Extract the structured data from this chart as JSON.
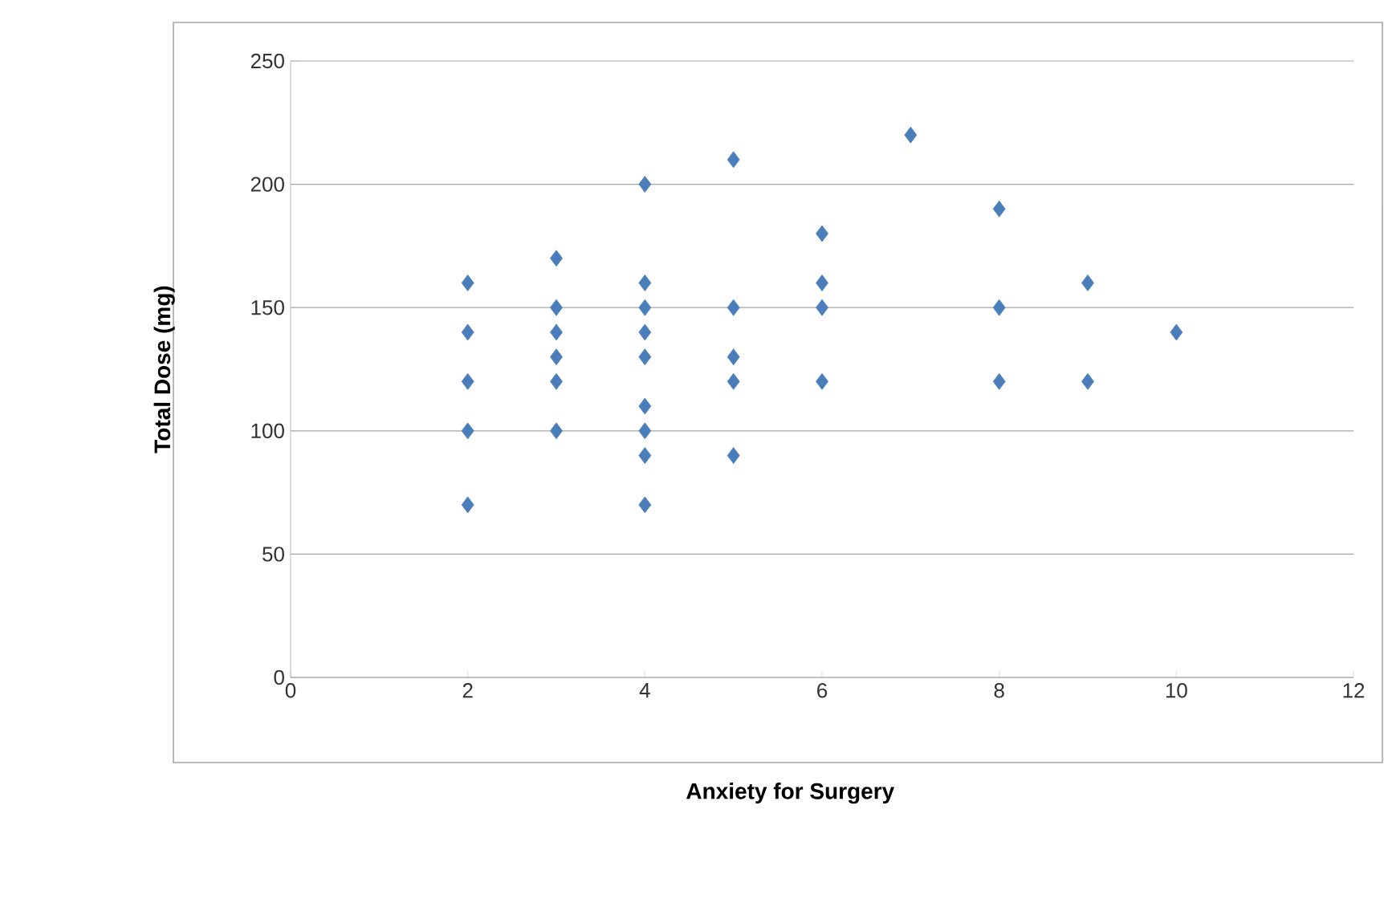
{
  "chart_data": {
    "type": "scatter",
    "xlabel": "Anxiety for Surgery",
    "ylabel": "Total Dose (mg)",
    "series": [
      {
        "color": "#4a7ebb",
        "x": [
          2,
          2,
          2,
          2,
          2,
          3,
          3,
          3,
          3,
          3,
          3,
          4,
          4,
          4,
          4,
          4,
          4,
          4,
          4,
          4,
          5,
          5,
          5,
          5,
          5,
          6,
          6,
          6,
          6,
          7,
          8,
          8,
          8,
          9,
          9,
          10
        ],
        "values": [
          160,
          140,
          120,
          100,
          70,
          170,
          150,
          140,
          130,
          120,
          100,
          200,
          160,
          150,
          140,
          130,
          110,
          100,
          90,
          70,
          210,
          150,
          130,
          120,
          90,
          180,
          160,
          150,
          120,
          220,
          190,
          150,
          120,
          160,
          120,
          140
        ]
      }
    ],
    "xlim": [
      0,
      12
    ],
    "xticks": [
      0,
      2,
      4,
      6,
      8,
      10,
      12
    ],
    "ylim": [
      0,
      250
    ],
    "yticks": [
      0,
      50,
      100,
      150,
      200,
      250
    ],
    "grid": "y",
    "marker": "diamond"
  }
}
